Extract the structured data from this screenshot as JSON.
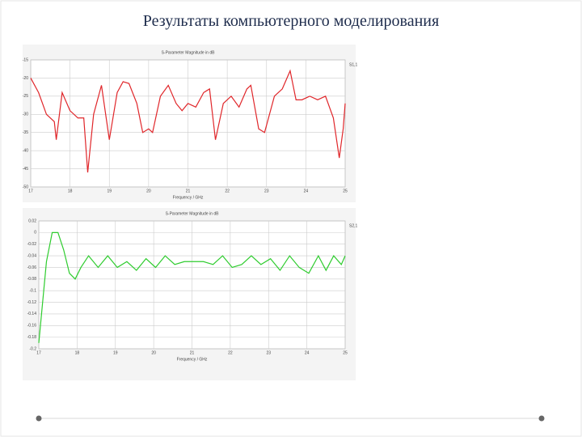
{
  "slide_title": "Результаты компьютерного моделирования",
  "chart_data": [
    {
      "type": "line",
      "title": "S-Parameter Magnitude in dB",
      "x_label": "Frequency / GHz",
      "xlim": [
        17,
        25
      ],
      "xticks": [
        17,
        18,
        19,
        20,
        21,
        22,
        23,
        24,
        25
      ],
      "ylim": [
        -50,
        -15
      ],
      "yticks": [
        -15,
        -20,
        -25,
        -30,
        -35,
        -40,
        -45,
        -50
      ],
      "grid": true,
      "legend": "right",
      "series": [
        {
          "name": "S1,1",
          "color": "#e0262a",
          "x": [
            17,
            17.2,
            17.4,
            17.6,
            17.65,
            17.8,
            18.0,
            18.2,
            18.35,
            18.45,
            18.6,
            18.8,
            19.0,
            19.2,
            19.35,
            19.5,
            19.7,
            19.85,
            20.0,
            20.1,
            20.3,
            20.5,
            20.7,
            20.85,
            21.0,
            21.2,
            21.4,
            21.55,
            21.7,
            21.9,
            22.1,
            22.3,
            22.5,
            22.6,
            22.8,
            22.95,
            23.2,
            23.4,
            23.6,
            23.75,
            23.9,
            24.1,
            24.3,
            24.5,
            24.7,
            24.85,
            24.95,
            25
          ],
          "values": [
            -20,
            -24,
            -30,
            -32,
            -37,
            -24,
            -29,
            -31,
            -31,
            -46,
            -30,
            -22,
            -37,
            -24,
            -21,
            -21.5,
            -27,
            -35,
            -34,
            -35,
            -25,
            -22,
            -27,
            -29,
            -27,
            -28,
            -24,
            -23,
            -37,
            -27,
            -25,
            -28,
            -23,
            -22,
            -34,
            -35,
            -25,
            -23,
            -18,
            -26,
            -26,
            -25,
            -26,
            -25,
            -31,
            -42,
            -34,
            -27
          ]
        }
      ]
    },
    {
      "type": "line",
      "title": "S-Parameter Magnitude in dB",
      "x_label": "Frequency / GHz",
      "xlim": [
        17,
        25
      ],
      "xticks": [
        17,
        18,
        19,
        20,
        21,
        22,
        23,
        24,
        25
      ],
      "ylim": [
        -0.2,
        0.02
      ],
      "yticks": [
        0.02,
        0,
        -0.02,
        -0.04,
        -0.06,
        -0.08,
        -0.1,
        -0.12,
        -0.14,
        -0.16,
        -0.18,
        -0.2
      ],
      "grid": true,
      "legend": "right",
      "series": [
        {
          "name": "S2,1",
          "color": "#2ecc2e",
          "x": [
            17,
            17.1,
            17.2,
            17.35,
            17.5,
            17.65,
            17.8,
            17.95,
            18.1,
            18.3,
            18.55,
            18.8,
            19.05,
            19.3,
            19.55,
            19.8,
            20.05,
            20.3,
            20.55,
            20.8,
            21.05,
            21.3,
            21.55,
            21.8,
            22.05,
            22.3,
            22.55,
            22.8,
            23.05,
            23.3,
            23.55,
            23.8,
            24.05,
            24.3,
            24.5,
            24.7,
            24.9,
            25
          ],
          "values": [
            -0.19,
            -0.12,
            -0.05,
            0,
            0,
            -0.03,
            -0.07,
            -0.08,
            -0.06,
            -0.04,
            -0.06,
            -0.04,
            -0.06,
            -0.05,
            -0.065,
            -0.045,
            -0.06,
            -0.04,
            -0.055,
            -0.05,
            -0.05,
            -0.05,
            -0.055,
            -0.04,
            -0.06,
            -0.055,
            -0.04,
            -0.055,
            -0.045,
            -0.065,
            -0.04,
            -0.06,
            -0.07,
            -0.04,
            -0.065,
            -0.04,
            -0.055,
            -0.04
          ]
        }
      ]
    }
  ]
}
